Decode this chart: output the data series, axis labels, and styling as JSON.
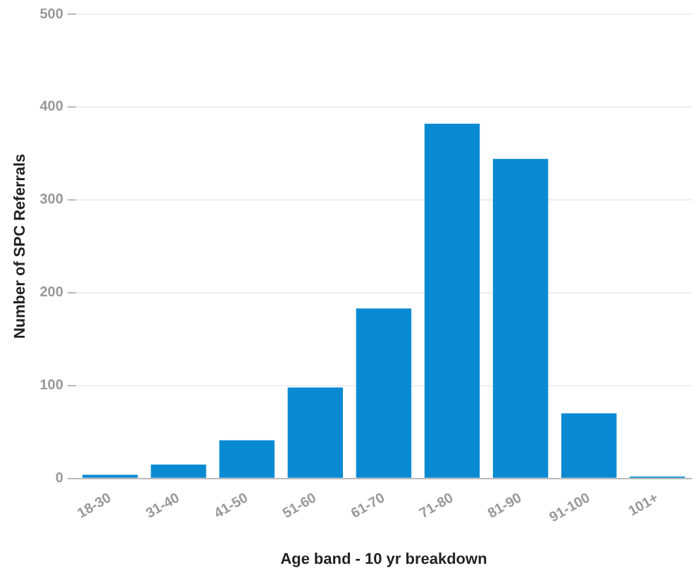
{
  "chart_data": {
    "type": "bar",
    "xlabel": "Age band - 10 yr breakdown",
    "ylabel": "Number of SPC Referrals",
    "categories": [
      "18-30",
      "31-40",
      "41-50",
      "51-60",
      "61-70",
      "71-80",
      "81-90",
      "91-100",
      "101+"
    ],
    "values": [
      4,
      15,
      41,
      98,
      183,
      382,
      344,
      70,
      2
    ],
    "color": "#0a8ad2",
    "ylim": [
      0,
      500
    ],
    "yticks": [
      0,
      100,
      200,
      300,
      400,
      500
    ],
    "grid": "y",
    "legend": false
  }
}
